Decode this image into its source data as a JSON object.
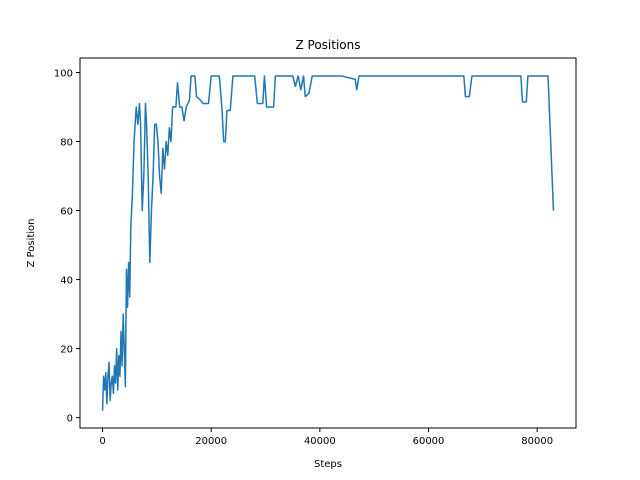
{
  "chart_data": {
    "type": "line",
    "title": "Z Positions",
    "xlabel": "Steps",
    "ylabel": "Z Position",
    "x": [
      0,
      200,
      400,
      600,
      800,
      1000,
      1200,
      1400,
      1600,
      1800,
      2000,
      2200,
      2400,
      2600,
      2800,
      3000,
      3200,
      3400,
      3600,
      3800,
      4000,
      4200,
      4400,
      4600,
      4800,
      5000,
      5200,
      5500,
      5800,
      6200,
      6500,
      6800,
      7000,
      7300,
      7600,
      7900,
      8100,
      8400,
      8700,
      9000,
      9300,
      9600,
      9900,
      10200,
      10500,
      10800,
      11100,
      11400,
      11700,
      12000,
      12300,
      12600,
      12900,
      13500,
      13800,
      14200,
      14600,
      15000,
      15400,
      16000,
      16300,
      17000,
      17300,
      18000,
      18500,
      19500,
      20000,
      21500,
      22000,
      22300,
      22600,
      22900,
      23500,
      24000,
      28000,
      28500,
      29500,
      29800,
      30200,
      31500,
      31800,
      35000,
      35500,
      36000,
      36500,
      37000,
      37300,
      38000,
      38600,
      44000,
      46500,
      46800,
      47200,
      55000,
      60000,
      66500,
      66800,
      67500,
      68000,
      77000,
      77300,
      78000,
      78300,
      82000,
      83000
    ],
    "series": [
      {
        "name": "Z Position",
        "color": "#1f77b4",
        "values": [
          2,
          12,
          8,
          13,
          4,
          12,
          16,
          5,
          10,
          12,
          7,
          15,
          10,
          20,
          8,
          18,
          12,
          25,
          15,
          30,
          20,
          9,
          43,
          32,
          45,
          35,
          55,
          65,
          80,
          90,
          85,
          91,
          85,
          60,
          70,
          91,
          85,
          70,
          45,
          60,
          70,
          85,
          85,
          80,
          70,
          65,
          78,
          72,
          80,
          76,
          84,
          80,
          90,
          90,
          97,
          90,
          90,
          86,
          90,
          92,
          99,
          99,
          93,
          92,
          91,
          91,
          99,
          99,
          89,
          80,
          80,
          89,
          89,
          99,
          99,
          91,
          91,
          99,
          90,
          90,
          99,
          99,
          96,
          99,
          95,
          99,
          93,
          94,
          99,
          99,
          98,
          95,
          99,
          99,
          99,
          99,
          93,
          93,
          99,
          99,
          91.5,
          91.5,
          99,
          99,
          60
        ]
      }
    ],
    "xlim": [
      -4150,
      87150
    ],
    "ylim": [
      -3,
      104.2
    ],
    "xticks": [
      0,
      20000,
      40000,
      60000,
      80000
    ],
    "yticks": [
      0,
      20,
      40,
      60,
      80,
      100
    ]
  }
}
